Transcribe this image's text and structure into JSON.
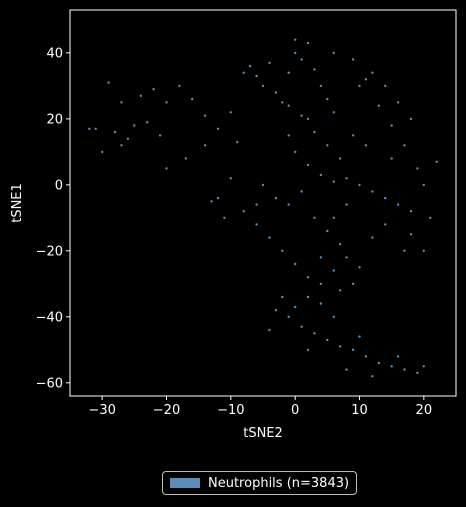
{
  "chart_data": {
    "type": "scatter",
    "xlabel": "tSNE2",
    "ylabel": "tSNE1",
    "xlim": [
      -35,
      25
    ],
    "ylim": [
      -64,
      53
    ],
    "xticks": [
      -30,
      -20,
      -10,
      0,
      10,
      20
    ],
    "yticks": [
      -60,
      -40,
      -20,
      0,
      20,
      40
    ],
    "xtick_labels": [
      "−30",
      "−20",
      "−10",
      "0",
      "10",
      "20"
    ],
    "ytick_labels": [
      "−60",
      "−40",
      "−20",
      "0",
      "20",
      "40"
    ],
    "grid": false,
    "legend_position": "bottom-center",
    "series": [
      {
        "name": "Neutrophils (n=3843)",
        "color": "#5b8db8",
        "point_count": 3843,
        "points": [
          [
            -31,
            17
          ],
          [
            -28,
            16
          ],
          [
            -26,
            14
          ],
          [
            -25,
            18
          ],
          [
            -27,
            12
          ],
          [
            -24,
            27
          ],
          [
            -22,
            29
          ],
          [
            -20,
            25
          ],
          [
            -18,
            30
          ],
          [
            -16,
            26
          ],
          [
            -14,
            21
          ],
          [
            -12,
            17
          ],
          [
            -10,
            22
          ],
          [
            -8,
            34
          ],
          [
            -6,
            33
          ],
          [
            -5,
            30
          ],
          [
            -3,
            28
          ],
          [
            -2,
            25
          ],
          [
            -1,
            24
          ],
          [
            0,
            44
          ],
          [
            0,
            40
          ],
          [
            2,
            43
          ],
          [
            1,
            38
          ],
          [
            3,
            35
          ],
          [
            4,
            30
          ],
          [
            5,
            26
          ],
          [
            6,
            22
          ],
          [
            2,
            20
          ],
          [
            -1,
            15
          ],
          [
            0,
            10
          ],
          [
            2,
            6
          ],
          [
            4,
            3
          ],
          [
            6,
            1
          ],
          [
            8,
            2
          ],
          [
            10,
            0
          ],
          [
            12,
            -2
          ],
          [
            14,
            -4
          ],
          [
            16,
            -6
          ],
          [
            18,
            -8
          ],
          [
            20,
            0
          ],
          [
            15,
            8
          ],
          [
            11,
            12
          ],
          [
            9,
            15
          ],
          [
            10,
            30
          ],
          [
            12,
            34
          ],
          [
            14,
            30
          ],
          [
            16,
            25
          ],
          [
            18,
            20
          ],
          [
            17,
            12
          ],
          [
            19,
            5
          ],
          [
            -5,
            0
          ],
          [
            -3,
            -4
          ],
          [
            -1,
            -6
          ],
          [
            1,
            -2
          ],
          [
            3,
            -10
          ],
          [
            5,
            -14
          ],
          [
            7,
            -18
          ],
          [
            8,
            -22
          ],
          [
            6,
            -26
          ],
          [
            4,
            -30
          ],
          [
            2,
            -34
          ],
          [
            0,
            -37
          ],
          [
            -1,
            -40
          ],
          [
            1,
            -43
          ],
          [
            3,
            -45
          ],
          [
            5,
            -47
          ],
          [
            7,
            -49
          ],
          [
            9,
            -50
          ],
          [
            11,
            -52
          ],
          [
            13,
            -54
          ],
          [
            15,
            -55
          ],
          [
            17,
            -56
          ],
          [
            19,
            -57
          ],
          [
            20,
            -55
          ],
          [
            16,
            -52
          ],
          [
            10,
            -46
          ],
          [
            6,
            -40
          ],
          [
            4,
            -36
          ],
          [
            -2,
            -34
          ],
          [
            -3,
            -38
          ],
          [
            -4,
            -44
          ],
          [
            2,
            -50
          ],
          [
            8,
            -56
          ],
          [
            12,
            -58
          ],
          [
            -10,
            2
          ],
          [
            -12,
            -4
          ],
          [
            -8,
            -8
          ],
          [
            -6,
            -6
          ],
          [
            -9,
            13
          ],
          [
            -14,
            12
          ],
          [
            -17,
            8
          ],
          [
            -20,
            5
          ],
          [
            -21,
            15
          ],
          [
            -23,
            19
          ],
          [
            -27,
            25
          ],
          [
            -29,
            31
          ],
          [
            -32,
            17
          ],
          [
            -30,
            10
          ],
          [
            7,
            8
          ],
          [
            5,
            12
          ],
          [
            3,
            16
          ],
          [
            1,
            21
          ],
          [
            -1,
            34
          ],
          [
            -4,
            37
          ],
          [
            -7,
            36
          ],
          [
            6,
            40
          ],
          [
            9,
            38
          ],
          [
            11,
            32
          ],
          [
            13,
            24
          ],
          [
            15,
            18
          ],
          [
            20,
            -20
          ],
          [
            18,
            -15
          ],
          [
            14,
            -12
          ],
          [
            12,
            -16
          ],
          [
            10,
            -25
          ],
          [
            9,
            -30
          ],
          [
            7,
            -32
          ],
          [
            -6,
            -12
          ],
          [
            -4,
            -16
          ],
          [
            -2,
            -20
          ],
          [
            0,
            -24
          ],
          [
            2,
            -28
          ],
          [
            4,
            -22
          ],
          [
            6,
            -10
          ],
          [
            8,
            -6
          ],
          [
            -11,
            -10
          ],
          [
            -13,
            -5
          ],
          [
            22,
            7
          ],
          [
            21,
            -10
          ],
          [
            17,
            -20
          ]
        ]
      }
    ]
  }
}
